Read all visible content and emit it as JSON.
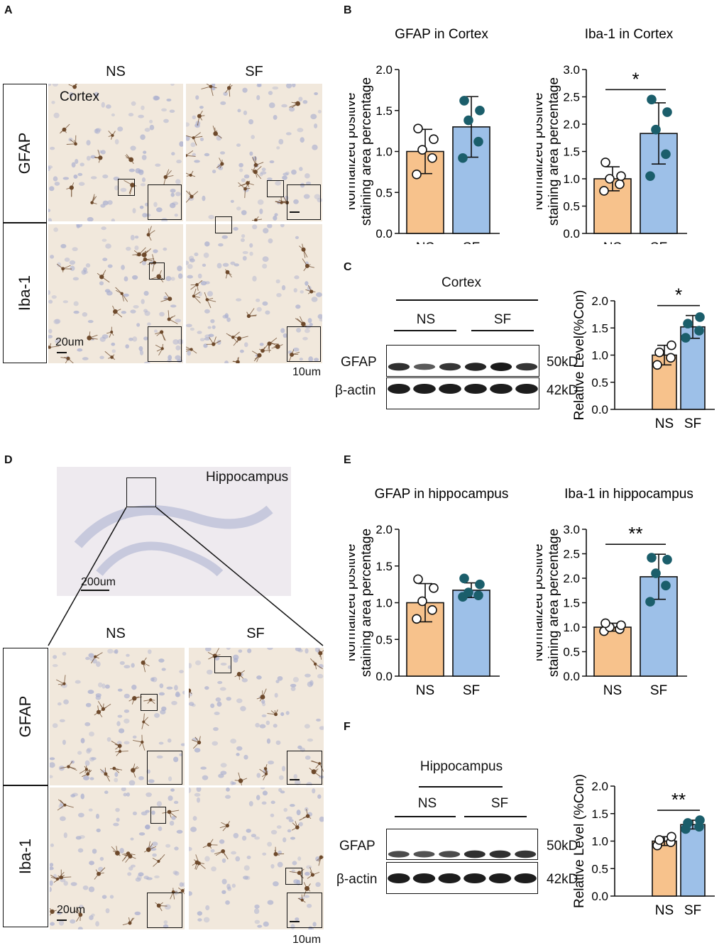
{
  "panels": {
    "A": {
      "label": "A",
      "columns": [
        "NS",
        "SF"
      ],
      "rows": [
        "GFAP",
        "Iba-1"
      ],
      "region": "Cortex",
      "scale_main": "20um",
      "scale_inset": "10um"
    },
    "B": {
      "label": "B"
    },
    "C": {
      "label": "C",
      "region": "Cortex",
      "groups": [
        "NS",
        "SF"
      ],
      "bands": [
        "GFAP",
        "β-actin"
      ],
      "sizes": [
        "50kD",
        "42kD"
      ]
    },
    "D": {
      "label": "D",
      "region": "Hippocampus",
      "overview_scale": "200um",
      "columns": [
        "NS",
        "SF"
      ],
      "rows": [
        "GFAP",
        "Iba-1"
      ],
      "scale_main": "20um",
      "scale_inset": "10um"
    },
    "E": {
      "label": "E"
    },
    "F": {
      "label": "F",
      "region": "Hippocampus",
      "groups": [
        "NS",
        "SF"
      ],
      "bands": [
        "GFAP",
        "β-actin"
      ],
      "sizes": [
        "50kD",
        "42kD"
      ]
    }
  },
  "colors": {
    "ns_fill": "#F7C28C",
    "sf_fill": "#9DC0E8",
    "point": "#1B5E6B",
    "tissue": "#F1E8DC",
    "nuclei": "#A9AECF",
    "cell": "#6E4A2C"
  },
  "chart_data": [
    {
      "id": "B1",
      "type": "bar",
      "title": "GFAP  in Cortex",
      "ylabel": "Normalized positive staining area percentage",
      "categories": [
        "NS",
        "SF"
      ],
      "values": [
        1.0,
        1.3
      ],
      "sd": [
        0.27,
        0.37
      ],
      "points": [
        [
          0.72,
          0.92,
          1.02,
          1.15,
          1.28
        ],
        [
          0.92,
          1.12,
          1.38,
          1.5,
          1.62
        ]
      ],
      "ylim": [
        0,
        2.0
      ],
      "ticks": [
        0.0,
        0.5,
        1.0,
        1.5,
        2.0
      ],
      "tick_labels": [
        "0.0",
        "0.5",
        "1.0",
        "1.5",
        "2.0"
      ],
      "significance": ""
    },
    {
      "id": "B2",
      "type": "bar",
      "title": "Iba-1  in Cortex",
      "ylabel": "Normalized positive staining area percentage",
      "categories": [
        "NS",
        "SF"
      ],
      "values": [
        1.0,
        1.83
      ],
      "sd": [
        0.22,
        0.56
      ],
      "points": [
        [
          0.78,
          0.9,
          1.0,
          1.05,
          1.3
        ],
        [
          1.05,
          1.45,
          1.9,
          2.22,
          2.45
        ]
      ],
      "ylim": [
        0,
        3.0
      ],
      "ticks": [
        0.0,
        0.5,
        1.0,
        1.5,
        2.0,
        2.5,
        3.0
      ],
      "tick_labels": [
        "0.0",
        "0.5",
        "1.0",
        "1.5",
        "2.0",
        "2.5",
        "3.0"
      ],
      "significance": "*"
    },
    {
      "id": "C",
      "type": "bar",
      "title": "",
      "ylabel": "Relative Level(%Con)",
      "categories": [
        "NS",
        "SF"
      ],
      "values": [
        1.0,
        1.52
      ],
      "sd": [
        0.18,
        0.21
      ],
      "points": [
        [
          0.82,
          0.95,
          1.05,
          1.18
        ],
        [
          1.32,
          1.45,
          1.58,
          1.7
        ]
      ],
      "ylim": [
        0,
        2.0
      ],
      "ticks": [
        0.0,
        0.5,
        1.0,
        1.5,
        2.0
      ],
      "tick_labels": [
        "0.0",
        "0.5",
        "1.0",
        "1.5",
        "2.0"
      ],
      "significance": "*"
    },
    {
      "id": "E1",
      "type": "bar",
      "title": "GFAP  in hippocampus",
      "ylabel": "Normalized positive staining area percentage",
      "categories": [
        "NS",
        "SF"
      ],
      "values": [
        1.0,
        1.17
      ],
      "sd": [
        0.26,
        0.1
      ],
      "points": [
        [
          0.78,
          0.9,
          1.02,
          1.2,
          1.32
        ],
        [
          1.08,
          1.1,
          1.14,
          1.25,
          1.33
        ]
      ],
      "ylim": [
        0,
        2.0
      ],
      "ticks": [
        0.0,
        0.5,
        1.0,
        1.5,
        2.0
      ],
      "tick_labels": [
        "0.0",
        "0.5",
        "1.0",
        "1.5",
        "2.0"
      ],
      "significance": ""
    },
    {
      "id": "E2",
      "type": "bar",
      "title": "Iba-1  in hippocampus",
      "ylabel": "Normalized positive staining area percentage",
      "categories": [
        "NS",
        "SF"
      ],
      "values": [
        1.0,
        2.03
      ],
      "sd": [
        0.08,
        0.46
      ],
      "points": [
        [
          0.92,
          0.96,
          1.0,
          1.04,
          1.08
        ],
        [
          1.52,
          1.85,
          2.1,
          2.38,
          2.42
        ]
      ],
      "ylim": [
        0,
        3.0
      ],
      "ticks": [
        0.0,
        0.5,
        1.0,
        1.5,
        2.0,
        2.5,
        3.0
      ],
      "tick_labels": [
        "0.0",
        "0.5",
        "1.0",
        "1.5",
        "2.0",
        "2.5",
        "3.0"
      ],
      "significance": "**"
    },
    {
      "id": "F",
      "type": "bar",
      "title": "",
      "ylabel": "Relative Level (%Con)",
      "categories": [
        "NS",
        "SF"
      ],
      "values": [
        1.0,
        1.3
      ],
      "sd": [
        0.08,
        0.08
      ],
      "points": [
        [
          0.92,
          0.98,
          1.02,
          1.08
        ],
        [
          1.22,
          1.26,
          1.33,
          1.38
        ]
      ],
      "ylim": [
        0,
        2.0
      ],
      "ticks": [
        0.0,
        0.5,
        1.0,
        1.5,
        2.0
      ],
      "tick_labels": [
        "0.0",
        "0.5",
        "1.0",
        "1.5",
        "2.0"
      ],
      "significance": "**"
    }
  ]
}
